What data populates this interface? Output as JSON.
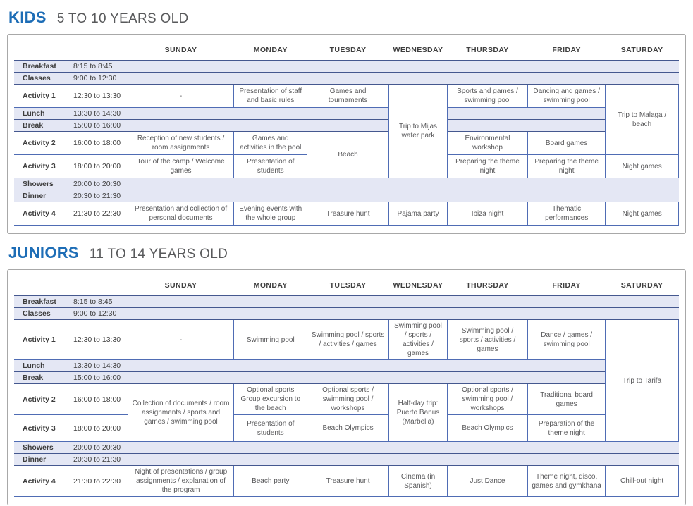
{
  "colors": {
    "title_blue": "#1d6db6",
    "subtitle_gray": "#58595b",
    "band_background": "#e4e7f4",
    "band_border": "#45588f",
    "cell_border": "#4f6cb4",
    "outer_border": "#a8a8a8"
  },
  "sections": [
    {
      "id": "kids",
      "title": "KIDS",
      "subtitle": "5 TO 10 YEARS OLD",
      "columns": [
        "SUNDAY",
        "MONDAY",
        "TUESDAY",
        "WEDNESDAY",
        "THURSDAY",
        "FRIDAY",
        "SATURDAY"
      ],
      "rows": [
        {
          "type": "band",
          "label": "Breakfast",
          "time": "8:15 to 8:45",
          "cells": [
            {
              "span": 7
            }
          ]
        },
        {
          "type": "band",
          "label": "Classes",
          "time": "9:00 to 12:30",
          "cells": [
            {
              "span": 7
            }
          ]
        },
        {
          "type": "activity",
          "label": "Activity 1",
          "time": "12:30 to 13:30",
          "cells": [
            {
              "text": "-"
            },
            {
              "text": "Presentation of staff and basic rules"
            },
            {
              "text": "Games and tournaments"
            },
            {
              "text": "Trip to Mijas water park",
              "rowspan": 5
            },
            {
              "text": "Sports and games / swimming pool"
            },
            {
              "text": "Dancing and games / swimming pool"
            },
            {
              "text": "Trip to Malaga / beach",
              "rowspan": 4
            }
          ]
        },
        {
          "type": "band",
          "label": "Lunch",
          "time": "13:30 to 14:30",
          "cells": [
            {
              "span": 3
            },
            {
              "span": 2
            }
          ]
        },
        {
          "type": "band",
          "label": "Break",
          "time": "15:00 to 16:00",
          "cells": [
            {
              "span": 3
            },
            {
              "span": 2
            }
          ]
        },
        {
          "type": "activity",
          "label": "Activity 2",
          "time": "16:00 to 18:00",
          "cells": [
            {
              "text": "Reception of new students / room assignments"
            },
            {
              "text": "Games and activities in the pool"
            },
            {
              "text": "Beach",
              "rowspan": 2
            },
            {
              "text": "Environmental workshop"
            },
            {
              "text": "Board games"
            }
          ]
        },
        {
          "type": "activity",
          "label": "Activity 3",
          "time": "18:00 to 20:00",
          "cells": [
            {
              "text": "Tour of the camp / Welcome games"
            },
            {
              "text": "Presentation of students"
            },
            {
              "text": "Preparing the theme night"
            },
            {
              "text": "Preparing the theme night"
            },
            {
              "text": "Night games"
            }
          ]
        },
        {
          "type": "band",
          "label": "Showers",
          "time": "20:00 to 20:30",
          "cells": [
            {
              "span": 7
            }
          ]
        },
        {
          "type": "band",
          "label": "Dinner",
          "time": "20:30 to 21:30",
          "cells": [
            {
              "span": 7
            }
          ]
        },
        {
          "type": "activity",
          "label": "Activity 4",
          "time": "21:30 to 22:30",
          "cells": [
            {
              "text": "Presentation and collection of personal documents"
            },
            {
              "text": "Evening events with the whole group"
            },
            {
              "text": "Treasure hunt"
            },
            {
              "text": "Pajama party"
            },
            {
              "text": "Ibiza night"
            },
            {
              "text": "Thematic performances"
            },
            {
              "text": "Night games"
            }
          ]
        }
      ]
    },
    {
      "id": "juniors",
      "title": "JUNIORS",
      "subtitle": "11 TO 14 YEARS OLD",
      "columns": [
        "SUNDAY",
        "MONDAY",
        "TUESDAY",
        "WEDNESDAY",
        "THURSDAY",
        "FRIDAY",
        "SATURDAY"
      ],
      "rows": [
        {
          "type": "band",
          "label": "Breakfast",
          "time": "8:15 to 8:45",
          "cells": [
            {
              "span": 7
            }
          ]
        },
        {
          "type": "band",
          "label": "Classes",
          "time": "9:00 to 12:30",
          "cells": [
            {
              "span": 7
            }
          ]
        },
        {
          "type": "activity",
          "label": "Activity 1",
          "time": "12:30 to 13:30",
          "cells": [
            {
              "text": "-"
            },
            {
              "text": "Swimming pool"
            },
            {
              "text": "Swimming pool / sports / activities / games"
            },
            {
              "text": "Swimming pool / sports / activities / games"
            },
            {
              "text": "Swimming pool / sports / activities / games"
            },
            {
              "text": "Dance / games / swimming pool"
            },
            {
              "text": "Trip to Tarifa",
              "rowspan": 5
            }
          ]
        },
        {
          "type": "band",
          "label": "Lunch",
          "time": "13:30 to 14:30",
          "cells": [
            {
              "span": 6
            }
          ]
        },
        {
          "type": "band",
          "label": "Break",
          "time": "15:00 to 16:00",
          "cells": [
            {
              "span": 6
            }
          ]
        },
        {
          "type": "activity",
          "label": "Activity 2",
          "time": "16:00 to 18:00",
          "cells": [
            {
              "text": "Collection of documents / room assignments / sports and games / swimming pool",
              "rowspan": 2
            },
            {
              "text": "Optional sports Group excursion to the beach"
            },
            {
              "text": "Optional sports / swimming pool / workshops"
            },
            {
              "text": "Half-day trip: Puerto Banus (Marbella)",
              "rowspan": 2
            },
            {
              "text": "Optional sports / swimming pool / workshops"
            },
            {
              "text": "Traditional board games"
            }
          ]
        },
        {
          "type": "activity",
          "label": "Activity 3",
          "time": "18:00 to 20:00",
          "cells": [
            {
              "text": "Presentation of students"
            },
            {
              "text": "Beach Olympics"
            },
            {
              "text": "Beach Olympics"
            },
            {
              "text": "Preparation of the theme night"
            }
          ]
        },
        {
          "type": "band",
          "label": "Showers",
          "time": "20:00 to 20:30",
          "cells": [
            {
              "span": 7
            }
          ]
        },
        {
          "type": "band",
          "label": "Dinner",
          "time": "20:30 to 21:30",
          "cells": [
            {
              "span": 7
            }
          ]
        },
        {
          "type": "activity",
          "label": "Activity 4",
          "time": "21:30 to 22:30",
          "cells": [
            {
              "text": "Night of presentations / group assignments / explanation of the program"
            },
            {
              "text": "Beach party"
            },
            {
              "text": "Treasure hunt"
            },
            {
              "text": "Cinema (in Spanish)"
            },
            {
              "text": "Just Dance"
            },
            {
              "text": "Theme night, disco, games and gymkhana"
            },
            {
              "text": "Chill-out night"
            }
          ]
        }
      ]
    }
  ]
}
